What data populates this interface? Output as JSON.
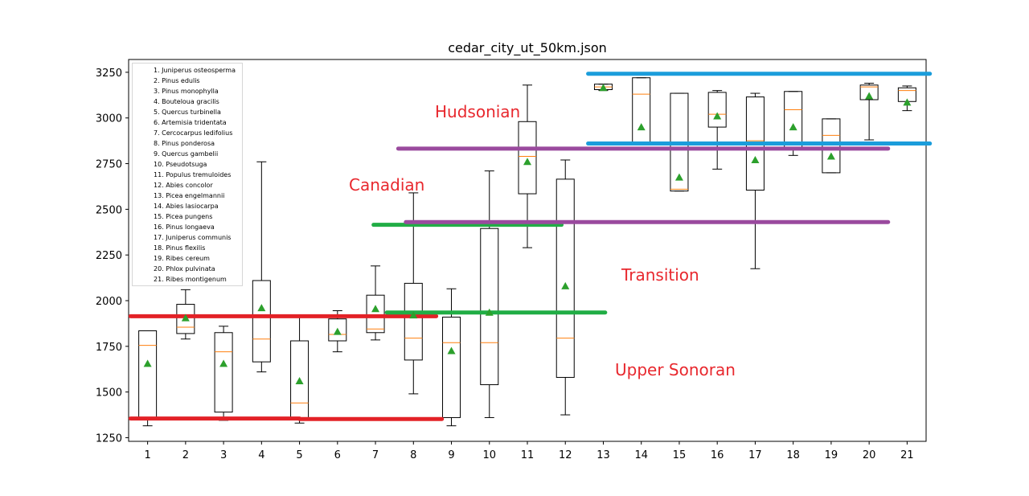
{
  "chart_data": {
    "type": "boxplot",
    "title": "cedar_city_ut_50km.json",
    "xlabel": "",
    "ylabel": "",
    "categories": [
      "1",
      "2",
      "3",
      "4",
      "5",
      "6",
      "7",
      "8",
      "9",
      "10",
      "11",
      "12",
      "13",
      "14",
      "15",
      "16",
      "17",
      "18",
      "19",
      "20",
      "21"
    ],
    "ylim": [
      1230,
      3320
    ],
    "yticks": [
      1250,
      1500,
      1750,
      2000,
      2250,
      2500,
      2750,
      3000,
      3250
    ],
    "boxes": [
      {
        "whisker_low": 1315,
        "q1": 1355,
        "median": 1755,
        "q3": 1835,
        "whisker_high": 1835,
        "mean": 1655
      },
      {
        "whisker_low": 1790,
        "q1": 1820,
        "median": 1855,
        "q3": 1980,
        "whisker_high": 2060,
        "mean": 1905
      },
      {
        "whisker_low": 1345,
        "q1": 1390,
        "median": 1720,
        "q3": 1825,
        "whisker_high": 1860,
        "mean": 1655
      },
      {
        "whisker_low": 1610,
        "q1": 1665,
        "median": 1790,
        "q3": 2110,
        "whisker_high": 2760,
        "mean": 1960
      },
      {
        "whisker_low": 1330,
        "q1": 1355,
        "median": 1440,
        "q3": 1780,
        "whisker_high": 1910,
        "mean": 1560
      },
      {
        "whisker_low": 1720,
        "q1": 1780,
        "median": 1815,
        "q3": 1900,
        "whisker_high": 1945,
        "mean": 1830
      },
      {
        "whisker_low": 1785,
        "q1": 1825,
        "median": 1845,
        "q3": 2030,
        "whisker_high": 2190,
        "mean": 1955
      },
      {
        "whisker_low": 1490,
        "q1": 1675,
        "median": 1795,
        "q3": 2095,
        "whisker_high": 2590,
        "mean": 1920
      },
      {
        "whisker_low": 1315,
        "q1": 1360,
        "median": 1770,
        "q3": 1910,
        "whisker_high": 2065,
        "mean": 1725
      },
      {
        "whisker_low": 1360,
        "q1": 1540,
        "median": 1770,
        "q3": 2395,
        "whisker_high": 2710,
        "mean": 1935
      },
      {
        "whisker_low": 2290,
        "q1": 2585,
        "median": 2790,
        "q3": 2980,
        "whisker_high": 3180,
        "mean": 2760
      },
      {
        "whisker_low": 1375,
        "q1": 1580,
        "median": 1795,
        "q3": 2665,
        "whisker_high": 2770,
        "mean": 2080
      },
      {
        "whisker_low": 3150,
        "q1": 3155,
        "median": 3170,
        "q3": 3185,
        "whisker_high": 3185,
        "mean": 3165
      },
      {
        "whisker_low": 2860,
        "q1": 2860,
        "median": 3130,
        "q3": 3220,
        "whisker_high": 3220,
        "mean": 2950
      },
      {
        "whisker_low": 2600,
        "q1": 2600,
        "median": 2610,
        "q3": 3135,
        "whisker_high": 3135,
        "mean": 2675
      },
      {
        "whisker_low": 2720,
        "q1": 2950,
        "median": 3020,
        "q3": 3140,
        "whisker_high": 3150,
        "mean": 3010
      },
      {
        "whisker_low": 2175,
        "q1": 2605,
        "median": 2875,
        "q3": 3115,
        "whisker_high": 3135,
        "mean": 2770
      },
      {
        "whisker_low": 2795,
        "q1": 2830,
        "median": 3045,
        "q3": 3145,
        "whisker_high": 3145,
        "mean": 2950
      },
      {
        "whisker_low": 2700,
        "q1": 2700,
        "median": 2905,
        "q3": 2995,
        "whisker_high": 2995,
        "mean": 2790
      },
      {
        "whisker_low": 2880,
        "q1": 3100,
        "median": 3170,
        "q3": 3180,
        "whisker_high": 3190,
        "mean": 3120
      },
      {
        "whisker_low": 3040,
        "q1": 3090,
        "median": 3150,
        "q3": 3165,
        "whisker_high": 3175,
        "mean": 3085
      }
    ],
    "legend_position": "top-left",
    "legend": [
      "1. Juniperus osteosperma",
      "2. Pinus edulis",
      "3. Pinus monophylla",
      "4. Bouteloua gracilis",
      "5. Quercus turbinella",
      "6. Artemisia tridentata",
      "7. Cercocarpus ledifolius",
      "8. Pinus ponderosa",
      "9. Quercus gambelii",
      "10. Pseudotsuga",
      "11. Populus tremuloides",
      "12. Abies concolor",
      "13. Picea engelmannii",
      "14. Abies lasiocarpa",
      "15. Picea pungens",
      "16. Pinus longaeva",
      "17. Juniperus communis",
      "18. Pinus flexilis",
      "19. Ribes cereum",
      "20. Phlox pulvinata",
      "21. Ribes montigenum"
    ],
    "zones": [
      {
        "name": "Upper Sonoran",
        "color": "#e32227",
        "segments": [
          {
            "x0": 0.55,
            "x1": 5.0,
            "y": 1355
          },
          {
            "x0": 5.0,
            "x1": 8.75,
            "y": 1352
          },
          {
            "x0": 0.55,
            "x1": 8.6,
            "y": 1915
          }
        ]
      },
      {
        "name": "Transition",
        "color": "#21ad45",
        "segments": [
          {
            "x0": 6.95,
            "x1": 11.9,
            "y": 2415
          },
          {
            "x0": 7.3,
            "x1": 13.05,
            "y": 1935
          }
        ]
      },
      {
        "name": "Canadian",
        "color": "#9a4a9e",
        "segments": [
          {
            "x0": 7.6,
            "x1": 20.5,
            "y": 2832
          },
          {
            "x0": 7.8,
            "x1": 20.5,
            "y": 2430
          }
        ]
      },
      {
        "name": "Hudsonian",
        "color": "#1b9ddb",
        "segments": [
          {
            "x0": 12.6,
            "x1": 21.6,
            "y": 3242
          },
          {
            "x0": 12.6,
            "x1": 21.6,
            "y": 2860
          }
        ]
      }
    ],
    "annotations": [
      "Hudsonian",
      "Canadian",
      "Transition",
      "Upper Sonoran"
    ],
    "colors": {
      "box": "#000000",
      "median": "#ff7f0e",
      "mean": "#2ca02c"
    },
    "grid": false
  }
}
